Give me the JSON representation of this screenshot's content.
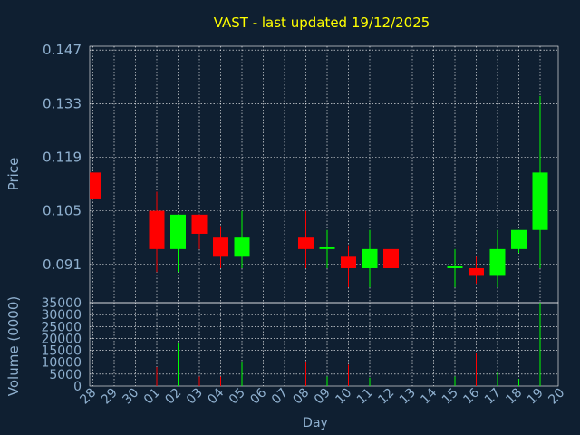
{
  "chart_data": {
    "type": "candlestick",
    "title": "VAST - last updated 19/12/2025",
    "xlabel": "Day",
    "ylabel_price": "Price",
    "ylabel_volume": "Volume (0000)",
    "price_ticks": [
      "0.147",
      "0.133",
      "0.119",
      "0.105",
      "0.091"
    ],
    "price_range": [
      0.081,
      0.148
    ],
    "volume_ticks": [
      "35000",
      "30000",
      "25000",
      "20000",
      "15000",
      "10000",
      "5000",
      "0"
    ],
    "volume_range": [
      0,
      35000
    ],
    "grid": true,
    "days": [
      "28",
      "29",
      "30",
      "01",
      "02",
      "03",
      "04",
      "05",
      "06",
      "07",
      "08",
      "09",
      "10",
      "11",
      "12",
      "13",
      "14",
      "15",
      "16",
      "17",
      "18",
      "19",
      "20"
    ],
    "candles": [
      {
        "day": "28",
        "open": 0.115,
        "high": 0.115,
        "low": 0.108,
        "close": 0.108,
        "volume": 0
      },
      {
        "day": "01",
        "open": 0.105,
        "high": 0.11,
        "low": 0.089,
        "close": 0.095,
        "volume": 8000
      },
      {
        "day": "02",
        "open": 0.095,
        "high": 0.104,
        "low": 0.089,
        "close": 0.104,
        "volume": 18000
      },
      {
        "day": "03",
        "open": 0.104,
        "high": 0.104,
        "low": 0.095,
        "close": 0.099,
        "volume": 4000
      },
      {
        "day": "04",
        "open": 0.098,
        "high": 0.101,
        "low": 0.09,
        "close": 0.093,
        "volume": 4000
      },
      {
        "day": "05",
        "open": 0.093,
        "high": 0.105,
        "low": 0.09,
        "close": 0.098,
        "volume": 10000
      },
      {
        "day": "08",
        "open": 0.098,
        "high": 0.105,
        "low": 0.09,
        "close": 0.095,
        "volume": 10000
      },
      {
        "day": "09",
        "open": 0.095,
        "high": 0.1,
        "low": 0.09,
        "close": 0.0955,
        "volume": 4000
      },
      {
        "day": "10",
        "open": 0.093,
        "high": 0.096,
        "low": 0.085,
        "close": 0.09,
        "volume": 9000
      },
      {
        "day": "11",
        "open": 0.09,
        "high": 0.1,
        "low": 0.085,
        "close": 0.095,
        "volume": 3500
      },
      {
        "day": "12",
        "open": 0.095,
        "high": 0.1,
        "low": 0.086,
        "close": 0.09,
        "volume": 3000
      },
      {
        "day": "15",
        "open": 0.09,
        "high": 0.095,
        "low": 0.085,
        "close": 0.0905,
        "volume": 4000
      },
      {
        "day": "16",
        "open": 0.09,
        "high": 0.093,
        "low": 0.086,
        "close": 0.088,
        "volume": 14000
      },
      {
        "day": "17",
        "open": 0.088,
        "high": 0.1,
        "low": 0.085,
        "close": 0.095,
        "volume": 6000
      },
      {
        "day": "18",
        "open": 0.095,
        "high": 0.1,
        "low": 0.094,
        "close": 0.1,
        "volume": 3000
      },
      {
        "day": "19",
        "open": 0.1,
        "high": 0.135,
        "low": 0.09,
        "close": 0.115,
        "volume": 35000
      }
    ],
    "colors": {
      "background": "#0f1f31",
      "up": "#00ff00",
      "down": "#ff0000",
      "text": "#8fb0cf",
      "title": "#ffff00",
      "grid": "#ffffff"
    }
  }
}
